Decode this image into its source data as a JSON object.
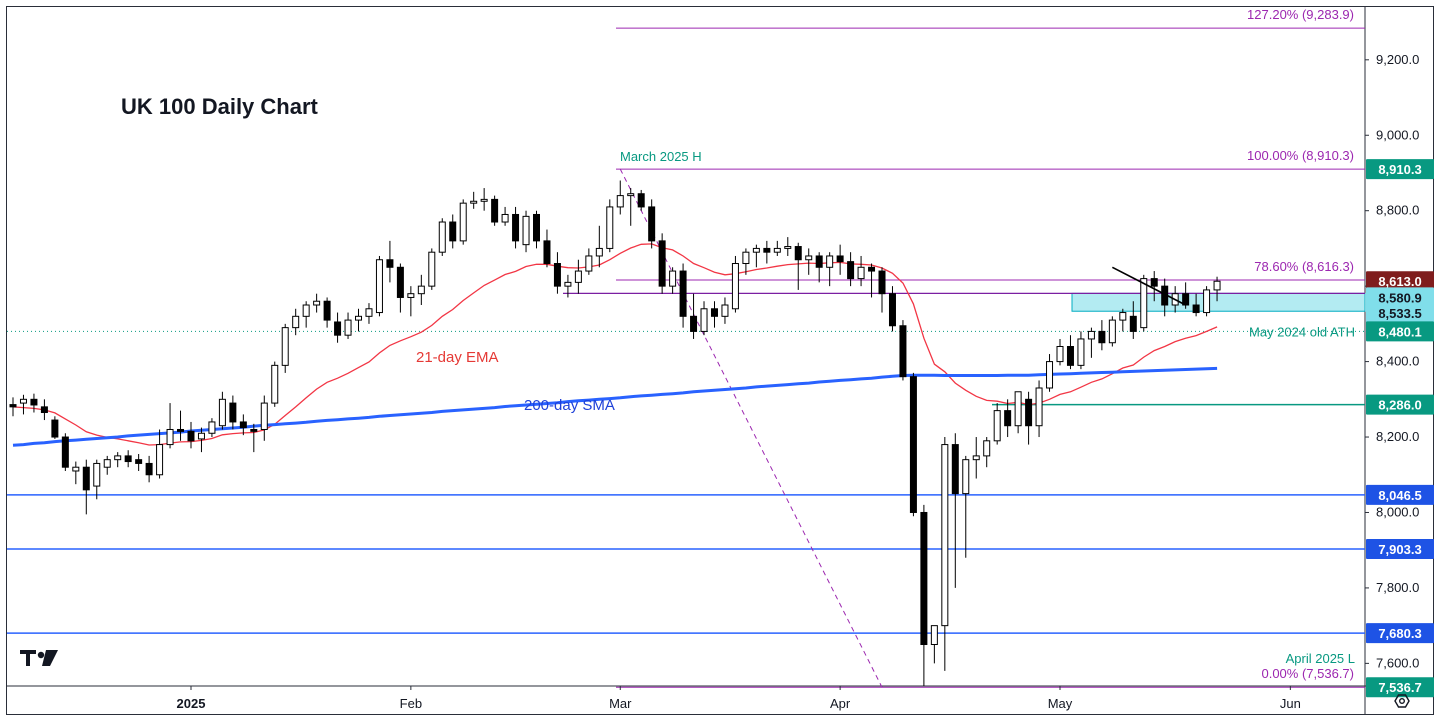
{
  "chart_data": {
    "type": "candlestick",
    "title": "UK 100 Daily Chart",
    "y_axis": {
      "range": [
        7540,
        9340
      ],
      "ticks": [
        7600,
        7800,
        8000,
        8200,
        8400,
        8600,
        8800,
        9000,
        9200
      ],
      "tick_labels": [
        "7,600.0",
        "7,800.0",
        "8,000.0",
        "8,200.0",
        "8,400.0",
        "8,600.0",
        "8,800.0",
        "9,000.0",
        "9,200.0"
      ],
      "position": "right"
    },
    "x_axis": {
      "ticks": [
        {
          "label": "2025",
          "index": 17
        },
        {
          "label": "Feb",
          "index": 38
        },
        {
          "label": "Mar",
          "index": 58
        },
        {
          "label": "Apr",
          "index": 79
        },
        {
          "label": "May",
          "index": 100
        },
        {
          "label": "Jun",
          "index": 122
        }
      ]
    },
    "grid": false,
    "ohlc": [
      [
        8286,
        8305,
        8255,
        8280
      ],
      [
        8290,
        8312,
        8260,
        8300
      ],
      [
        8300,
        8315,
        8265,
        8285
      ],
      [
        8280,
        8300,
        8245,
        8265
      ],
      [
        8245,
        8255,
        8195,
        8200
      ],
      [
        8200,
        8210,
        8110,
        8120
      ],
      [
        8110,
        8135,
        8075,
        8120
      ],
      [
        8120,
        8140,
        7995,
        8060
      ],
      [
        8070,
        8140,
        8035,
        8130
      ],
      [
        8120,
        8150,
        8100,
        8140
      ],
      [
        8140,
        8160,
        8120,
        8150
      ],
      [
        8150,
        8165,
        8120,
        8135
      ],
      [
        8140,
        8155,
        8110,
        8130
      ],
      [
        8130,
        8150,
        8080,
        8100
      ],
      [
        8100,
        8220,
        8090,
        8180
      ],
      [
        8180,
        8290,
        8170,
        8220
      ],
      [
        8220,
        8270,
        8190,
        8215
      ],
      [
        8215,
        8240,
        8170,
        8190
      ],
      [
        8195,
        8225,
        8160,
        8210
      ],
      [
        8210,
        8250,
        8200,
        8240
      ],
      [
        8230,
        8320,
        8220,
        8300
      ],
      [
        8290,
        8310,
        8220,
        8240
      ],
      [
        8240,
        8260,
        8205,
        8225
      ],
      [
        8220,
        8235,
        8160,
        8215
      ],
      [
        8220,
        8310,
        8190,
        8290
      ],
      [
        8290,
        8400,
        8280,
        8390
      ],
      [
        8390,
        8500,
        8370,
        8490
      ],
      [
        8490,
        8540,
        8470,
        8520
      ],
      [
        8520,
        8560,
        8490,
        8550
      ],
      [
        8550,
        8580,
        8530,
        8560
      ],
      [
        8560,
        8570,
        8490,
        8510
      ],
      [
        8505,
        8530,
        8450,
        8470
      ],
      [
        8470,
        8530,
        8460,
        8510
      ],
      [
        8510,
        8540,
        8480,
        8520
      ],
      [
        8520,
        8555,
        8500,
        8540
      ],
      [
        8530,
        8680,
        8520,
        8670
      ],
      [
        8670,
        8720,
        8610,
        8650
      ],
      [
        8650,
        8660,
        8530,
        8570
      ],
      [
        8570,
        8600,
        8520,
        8580
      ],
      [
        8580,
        8630,
        8550,
        8600
      ],
      [
        8600,
        8700,
        8590,
        8690
      ],
      [
        8690,
        8780,
        8680,
        8770
      ],
      [
        8770,
        8790,
        8700,
        8720
      ],
      [
        8720,
        8830,
        8710,
        8820
      ],
      [
        8820,
        8850,
        8805,
        8825
      ],
      [
        8825,
        8860,
        8800,
        8830
      ],
      [
        8830,
        8840,
        8760,
        8770
      ],
      [
        8770,
        8810,
        8760,
        8790
      ],
      [
        8790,
        8810,
        8700,
        8720
      ],
      [
        8710,
        8800,
        8690,
        8785
      ],
      [
        8790,
        8800,
        8700,
        8720
      ],
      [
        8720,
        8750,
        8650,
        8660
      ],
      [
        8660,
        8690,
        8580,
        8600
      ],
      [
        8600,
        8630,
        8570,
        8610
      ],
      [
        8610,
        8670,
        8580,
        8640
      ],
      [
        8640,
        8700,
        8630,
        8680
      ],
      [
        8680,
        8760,
        8650,
        8700
      ],
      [
        8700,
        8830,
        8690,
        8810
      ],
      [
        8810,
        8880,
        8790,
        8840
      ],
      [
        8840,
        8860,
        8760,
        8845
      ],
      [
        8845,
        8855,
        8800,
        8810
      ],
      [
        8810,
        8830,
        8700,
        8720
      ],
      [
        8720,
        8740,
        8580,
        8600
      ],
      [
        8600,
        8650,
        8580,
        8640
      ],
      [
        8640,
        8660,
        8490,
        8520
      ],
      [
        8520,
        8580,
        8460,
        8480
      ],
      [
        8480,
        8560,
        8470,
        8540
      ],
      [
        8540,
        8560,
        8490,
        8520
      ],
      [
        8520,
        8570,
        8500,
        8550
      ],
      [
        8540,
        8680,
        8530,
        8660
      ],
      [
        8660,
        8700,
        8630,
        8690
      ],
      [
        8690,
        8710,
        8650,
        8700
      ],
      [
        8700,
        8720,
        8660,
        8690
      ],
      [
        8690,
        8720,
        8680,
        8700
      ],
      [
        8700,
        8730,
        8680,
        8705
      ],
      [
        8705,
        8715,
        8590,
        8670
      ],
      [
        8670,
        8700,
        8630,
        8680
      ],
      [
        8680,
        8690,
        8610,
        8650
      ],
      [
        8650,
        8690,
        8600,
        8680
      ],
      [
        8680,
        8710,
        8630,
        8665
      ],
      [
        8665,
        8690,
        8600,
        8620
      ],
      [
        8620,
        8680,
        8600,
        8650
      ],
      [
        8650,
        8660,
        8570,
        8640
      ],
      [
        8640,
        8650,
        8530,
        8580
      ],
      [
        8580,
        8600,
        8480,
        8495
      ],
      [
        8495,
        8510,
        8350,
        8360
      ],
      [
        8360,
        8370,
        7990,
        8000
      ],
      [
        8000,
        8020,
        7540,
        7650
      ],
      [
        7650,
        7700,
        7600,
        7700
      ],
      [
        7700,
        8200,
        7580,
        8180
      ],
      [
        8180,
        8210,
        7800,
        8050
      ],
      [
        8050,
        8150,
        7880,
        8140
      ],
      [
        8140,
        8200,
        8090,
        8150
      ],
      [
        8150,
        8200,
        8120,
        8190
      ],
      [
        8190,
        8290,
        8180,
        8270
      ],
      [
        8270,
        8300,
        8200,
        8230
      ],
      [
        8230,
        8320,
        8210,
        8320
      ],
      [
        8300,
        8320,
        8180,
        8230
      ],
      [
        8230,
        8350,
        8200,
        8330
      ],
      [
        8330,
        8420,
        8320,
        8400
      ],
      [
        8400,
        8460,
        8390,
        8440
      ],
      [
        8440,
        8470,
        8380,
        8390
      ],
      [
        8390,
        8480,
        8380,
        8460
      ],
      [
        8460,
        8490,
        8410,
        8480
      ],
      [
        8480,
        8510,
        8430,
        8450
      ],
      [
        8450,
        8520,
        8440,
        8510
      ],
      [
        8510,
        8540,
        8480,
        8530
      ],
      [
        8520,
        8560,
        8460,
        8480
      ],
      [
        8490,
        8630,
        8480,
        8620
      ],
      [
        8620,
        8640,
        8560,
        8600
      ],
      [
        8600,
        8620,
        8520,
        8550
      ],
      [
        8550,
        8600,
        8530,
        8580
      ],
      [
        8580,
        8610,
        8540,
        8550
      ],
      [
        8550,
        8580,
        8520,
        8530
      ],
      [
        8530,
        8600,
        8520,
        8590
      ],
      [
        8590,
        8625,
        8560,
        8613
      ]
    ],
    "series": [
      {
        "name": "21-day EMA",
        "color": "#f23645",
        "values": [
          8280,
          8278,
          8276,
          8272,
          8264,
          8248,
          8232,
          8214,
          8205,
          8199,
          8195,
          8190,
          8185,
          8179,
          8180,
          8184,
          8187,
          8188,
          8191,
          8196,
          8206,
          8209,
          8211,
          8212,
          8219,
          8234,
          8257,
          8280,
          8304,
          8327,
          8345,
          8356,
          8369,
          8384,
          8399,
          8423,
          8443,
          8455,
          8466,
          8478,
          8496,
          8520,
          8538,
          8562,
          8582,
          8602,
          8616,
          8631,
          8639,
          8652,
          8658,
          8658,
          8653,
          8649,
          8648,
          8651,
          8656,
          8670,
          8687,
          8701,
          8711,
          8712,
          8702,
          8696,
          8680,
          8660,
          8649,
          8637,
          8630,
          8633,
          8638,
          8644,
          8648,
          8653,
          8657,
          8659,
          8661,
          8660,
          8662,
          8663,
          8659,
          8658,
          8656,
          8648,
          8634,
          8608,
          8553,
          8462,
          8393,
          8373,
          8343,
          8324,
          8308,
          8297,
          8295,
          8289,
          8292,
          8286,
          8290,
          8300,
          8313,
          8320,
          8332,
          8345,
          8354,
          8368,
          8383,
          8391,
          8412,
          8429,
          8440,
          8453,
          8462,
          8469,
          8480,
          8492
        ]
      },
      {
        "name": "200-day SMA",
        "color": "#2962ff",
        "values": [
          8178,
          8180,
          8183,
          8185,
          8188,
          8190,
          8192,
          8194,
          8196,
          8198,
          8200,
          8203,
          8205,
          8207,
          8209,
          8211,
          8213,
          8216,
          8218,
          8220,
          8222,
          8224,
          8226,
          8229,
          8231,
          8233,
          8235,
          8237,
          8239,
          8242,
          8244,
          8246,
          8248,
          8250,
          8252,
          8255,
          8257,
          8259,
          8261,
          8263,
          8265,
          8268,
          8270,
          8272,
          8274,
          8276,
          8278,
          8281,
          8283,
          8285,
          8287,
          8289,
          8291,
          8294,
          8296,
          8298,
          8300,
          8302,
          8304,
          8307,
          8309,
          8311,
          8313,
          8315,
          8317,
          8320,
          8322,
          8324,
          8326,
          8328,
          8330,
          8333,
          8335,
          8337,
          8339,
          8341,
          8343,
          8346,
          8348,
          8350,
          8352,
          8354,
          8356,
          8359,
          8361,
          8363,
          8364,
          8364,
          8364,
          8363,
          8363,
          8363,
          8363,
          8363,
          8363,
          8364,
          8364,
          8364,
          8365,
          8366,
          8367,
          8368,
          8369,
          8370,
          8371,
          8372,
          8373,
          8374,
          8375,
          8376,
          8377,
          8378,
          8379,
          8380,
          8381,
          8382
        ]
      }
    ],
    "horizontal_levels": [
      {
        "value": 8046.5,
        "label": "8,046.5",
        "color": "#2962ff"
      },
      {
        "value": 7903.3,
        "label": "7,903.3",
        "color": "#2962ff"
      },
      {
        "value": 7680.3,
        "label": "7,680.3",
        "color": "#2962ff"
      },
      {
        "value": 8286.0,
        "label": "8,286.0",
        "color": "#089981"
      }
    ],
    "fibonacci": [
      {
        "level": "127.20% (9,283.9)",
        "value": 9283.9
      },
      {
        "level": "100.00% (8,910.3)",
        "value": 8910.3
      },
      {
        "level": "78.60% (8,616.3)",
        "value": 8616.3
      },
      {
        "level": "0.00% (7,536.7)",
        "value": 7536.7
      }
    ],
    "price_badges": [
      {
        "label": "8,910.3",
        "value": 8910.3,
        "bg": "#089981",
        "fg": "#ffffff"
      },
      {
        "label": "8,613.0",
        "value": 8613.0,
        "bg": "#7f1d1d",
        "fg": "#ffffff"
      },
      {
        "label": "8,580.9",
        "value": 8580.9,
        "bg": "#80deea",
        "fg": "#131722"
      },
      {
        "label": "8,533.5",
        "value": 8533.5,
        "bg": "#80deea",
        "fg": "#131722"
      },
      {
        "label": "8,480.1",
        "value": 8480.1,
        "bg": "#089981",
        "fg": "#ffffff"
      },
      {
        "label": "8,286.0",
        "value": 8286.0,
        "bg": "#089981",
        "fg": "#ffffff"
      },
      {
        "label": "8,046.5",
        "value": 8046.5,
        "bg": "#1e53e5",
        "fg": "#ffffff"
      },
      {
        "label": "7,903.3",
        "value": 7903.3,
        "bg": "#1e53e5",
        "fg": "#ffffff"
      },
      {
        "label": "7,680.3",
        "value": 7680.3,
        "bg": "#1e53e5",
        "fg": "#ffffff"
      },
      {
        "label": "7,536.7",
        "value": 7536.7,
        "bg": "#089981",
        "fg": "#ffffff"
      }
    ],
    "annotations": [
      {
        "text": "March 2025 H",
        "color": "#089981"
      },
      {
        "text": "April 2025 L",
        "color": "#089981"
      },
      {
        "text": "May 2024 old ATH",
        "color": "#089981",
        "value": 8480.1
      },
      {
        "text": "21-day EMA",
        "color": "#e53935"
      },
      {
        "text": "200-day SMA",
        "color": "#1e40d8"
      }
    ],
    "support_zone": {
      "from": 8533.5,
      "to": 8580.9,
      "color": "#80deea"
    },
    "resistance_line": {
      "value": 8580.9
    }
  },
  "logo": "TV"
}
